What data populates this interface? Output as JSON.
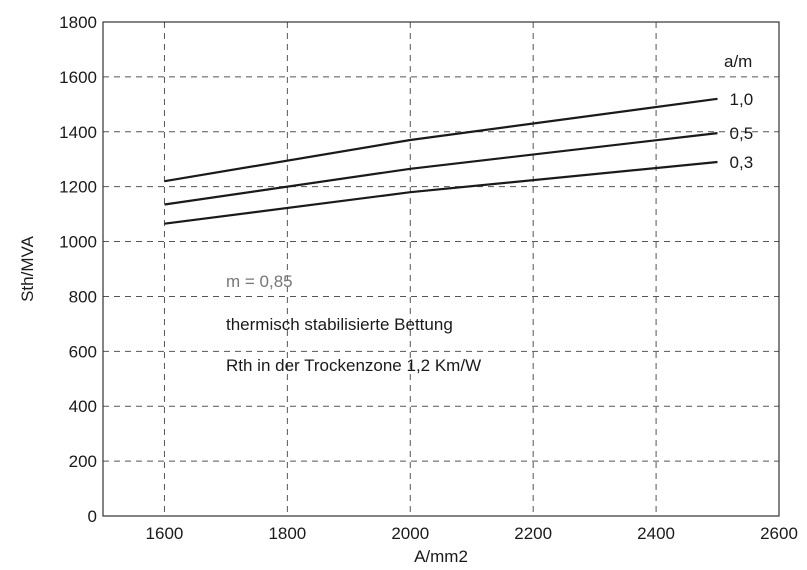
{
  "chart_data": {
    "type": "line",
    "xlabel": "A/mm2",
    "ylabel": "Sth/MVA",
    "xlim": [
      1500,
      2600
    ],
    "ylim": [
      0,
      1800
    ],
    "xticks": [
      1600,
      1800,
      2000,
      2200,
      2400,
      2600
    ],
    "yticks": [
      0,
      200,
      400,
      600,
      800,
      1000,
      1200,
      1400,
      1600,
      1800
    ],
    "grid": true,
    "legend_title": "a/m",
    "series": [
      {
        "name": "1,0",
        "x": [
          1600,
          2000,
          2500
        ],
        "y": [
          1220,
          1370,
          1520
        ]
      },
      {
        "name": "0,5",
        "x": [
          1600,
          2000,
          2500
        ],
        "y": [
          1135,
          1265,
          1395
        ]
      },
      {
        "name": "0,3",
        "x": [
          1600,
          2000,
          2500
        ],
        "y": [
          1065,
          1180,
          1290
        ]
      }
    ],
    "annotations": [
      "m = 0,85",
      "thermisch stabilisierte Bettung",
      "Rth in der Trockenzone 1,2 Km/W"
    ]
  }
}
